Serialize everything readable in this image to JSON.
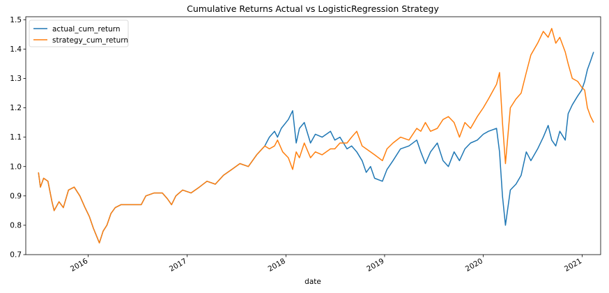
{
  "chart_data": {
    "type": "line",
    "title": "Cumulative Returns Actual vs LogisticRegression Strategy",
    "xlabel": "date",
    "ylabel": "",
    "xlim": [
      "2015-05-15",
      "2021-03-10"
    ],
    "ylim": [
      0.7,
      1.51
    ],
    "grid": false,
    "legend_position": "upper-left",
    "x_ticks": [
      "2016",
      "2017",
      "2018",
      "2019",
      "2020",
      "2021"
    ],
    "y_ticks": [
      "0.7",
      "0.8",
      "0.9",
      "1.0",
      "1.1",
      "1.2",
      "1.3",
      "1.4",
      "1.5"
    ],
    "series": [
      {
        "name": "actual_cum_return",
        "color": "#1f77b4",
        "points": [
          [
            "2015-07-01",
            0.98
          ],
          [
            "2015-07-08",
            0.93
          ],
          [
            "2015-07-20",
            0.96
          ],
          [
            "2015-08-05",
            0.95
          ],
          [
            "2015-08-20",
            0.88
          ],
          [
            "2015-08-28",
            0.85
          ],
          [
            "2015-09-15",
            0.88
          ],
          [
            "2015-10-01",
            0.86
          ],
          [
            "2015-10-20",
            0.92
          ],
          [
            "2015-11-10",
            0.93
          ],
          [
            "2015-12-01",
            0.9
          ],
          [
            "2015-12-20",
            0.86
          ],
          [
            "2016-01-05",
            0.83
          ],
          [
            "2016-01-20",
            0.79
          ],
          [
            "2016-02-11",
            0.74
          ],
          [
            "2016-02-25",
            0.78
          ],
          [
            "2016-03-10",
            0.8
          ],
          [
            "2016-03-25",
            0.84
          ],
          [
            "2016-04-10",
            0.86
          ],
          [
            "2016-05-01",
            0.87
          ],
          [
            "2016-06-01",
            0.87
          ],
          [
            "2016-07-15",
            0.87
          ],
          [
            "2016-08-01",
            0.9
          ],
          [
            "2016-09-01",
            0.91
          ],
          [
            "2016-10-01",
            0.91
          ],
          [
            "2016-10-20",
            0.89
          ],
          [
            "2016-11-04",
            0.87
          ],
          [
            "2016-11-20",
            0.9
          ],
          [
            "2016-12-15",
            0.92
          ],
          [
            "2017-01-15",
            0.91
          ],
          [
            "2017-02-15",
            0.93
          ],
          [
            "2017-03-15",
            0.95
          ],
          [
            "2017-04-15",
            0.94
          ],
          [
            "2017-05-15",
            0.97
          ],
          [
            "2017-06-15",
            0.99
          ],
          [
            "2017-07-15",
            1.01
          ],
          [
            "2017-08-15",
            1.0
          ],
          [
            "2017-09-15",
            1.04
          ],
          [
            "2017-10-15",
            1.07
          ],
          [
            "2017-11-01",
            1.1
          ],
          [
            "2017-11-20",
            1.12
          ],
          [
            "2017-12-01",
            1.1
          ],
          [
            "2017-12-15",
            1.13
          ],
          [
            "2018-01-10",
            1.16
          ],
          [
            "2018-01-26",
            1.19
          ],
          [
            "2018-02-08",
            1.08
          ],
          [
            "2018-02-20",
            1.13
          ],
          [
            "2018-03-10",
            1.15
          ],
          [
            "2018-04-02",
            1.08
          ],
          [
            "2018-04-20",
            1.11
          ],
          [
            "2018-05-15",
            1.1
          ],
          [
            "2018-06-15",
            1.12
          ],
          [
            "2018-07-01",
            1.09
          ],
          [
            "2018-07-20",
            1.1
          ],
          [
            "2018-08-15",
            1.06
          ],
          [
            "2018-09-01",
            1.07
          ],
          [
            "2018-09-20",
            1.05
          ],
          [
            "2018-10-10",
            1.02
          ],
          [
            "2018-10-25",
            0.98
          ],
          [
            "2018-11-10",
            1.0
          ],
          [
            "2018-11-25",
            0.96
          ],
          [
            "2018-12-24",
            0.95
          ],
          [
            "2019-01-10",
            0.99
          ],
          [
            "2019-02-01",
            1.02
          ],
          [
            "2019-03-01",
            1.06
          ],
          [
            "2019-04-01",
            1.07
          ],
          [
            "2019-04-30",
            1.09
          ],
          [
            "2019-05-15",
            1.05
          ],
          [
            "2019-06-01",
            1.01
          ],
          [
            "2019-06-20",
            1.05
          ],
          [
            "2019-07-15",
            1.08
          ],
          [
            "2019-08-05",
            1.02
          ],
          [
            "2019-08-25",
            1.0
          ],
          [
            "2019-09-15",
            1.05
          ],
          [
            "2019-10-05",
            1.02
          ],
          [
            "2019-10-25",
            1.06
          ],
          [
            "2019-11-15",
            1.08
          ],
          [
            "2019-12-10",
            1.09
          ],
          [
            "2020-01-01",
            1.11
          ],
          [
            "2020-01-20",
            1.12
          ],
          [
            "2020-02-19",
            1.13
          ],
          [
            "2020-03-01",
            1.05
          ],
          [
            "2020-03-12",
            0.9
          ],
          [
            "2020-03-23",
            0.8
          ],
          [
            "2020-04-10",
            0.92
          ],
          [
            "2020-05-01",
            0.94
          ],
          [
            "2020-05-20",
            0.97
          ],
          [
            "2020-06-08",
            1.05
          ],
          [
            "2020-06-25",
            1.02
          ],
          [
            "2020-07-20",
            1.06
          ],
          [
            "2020-08-10",
            1.1
          ],
          [
            "2020-08-28",
            1.14
          ],
          [
            "2020-09-10",
            1.09
          ],
          [
            "2020-09-25",
            1.07
          ],
          [
            "2020-10-10",
            1.12
          ],
          [
            "2020-10-30",
            1.09
          ],
          [
            "2020-11-10",
            1.18
          ],
          [
            "2020-11-25",
            1.21
          ],
          [
            "2020-12-15",
            1.24
          ],
          [
            "2020-12-30",
            1.26
          ],
          [
            "2021-01-10",
            1.29
          ],
          [
            "2021-01-20",
            1.33
          ],
          [
            "2021-02-01",
            1.36
          ],
          [
            "2021-02-12",
            1.39
          ]
        ]
      },
      {
        "name": "strategy_cum_return",
        "color": "#ff7f0e",
        "points": [
          [
            "2015-07-01",
            0.98
          ],
          [
            "2015-07-08",
            0.93
          ],
          [
            "2015-07-20",
            0.96
          ],
          [
            "2015-08-05",
            0.95
          ],
          [
            "2015-08-20",
            0.88
          ],
          [
            "2015-08-28",
            0.85
          ],
          [
            "2015-09-15",
            0.88
          ],
          [
            "2015-10-01",
            0.86
          ],
          [
            "2015-10-20",
            0.92
          ],
          [
            "2015-11-10",
            0.93
          ],
          [
            "2015-12-01",
            0.9
          ],
          [
            "2015-12-20",
            0.86
          ],
          [
            "2016-01-05",
            0.83
          ],
          [
            "2016-01-20",
            0.79
          ],
          [
            "2016-02-11",
            0.74
          ],
          [
            "2016-02-25",
            0.78
          ],
          [
            "2016-03-10",
            0.8
          ],
          [
            "2016-03-25",
            0.84
          ],
          [
            "2016-04-10",
            0.86
          ],
          [
            "2016-05-01",
            0.87
          ],
          [
            "2016-06-01",
            0.87
          ],
          [
            "2016-07-15",
            0.87
          ],
          [
            "2016-08-01",
            0.9
          ],
          [
            "2016-09-01",
            0.91
          ],
          [
            "2016-10-01",
            0.91
          ],
          [
            "2016-10-20",
            0.89
          ],
          [
            "2016-11-04",
            0.87
          ],
          [
            "2016-11-20",
            0.9
          ],
          [
            "2016-12-15",
            0.92
          ],
          [
            "2017-01-15",
            0.91
          ],
          [
            "2017-02-15",
            0.93
          ],
          [
            "2017-03-15",
            0.95
          ],
          [
            "2017-04-15",
            0.94
          ],
          [
            "2017-05-15",
            0.97
          ],
          [
            "2017-06-15",
            0.99
          ],
          [
            "2017-07-15",
            1.01
          ],
          [
            "2017-08-15",
            1.0
          ],
          [
            "2017-09-15",
            1.04
          ],
          [
            "2017-10-15",
            1.07
          ],
          [
            "2017-11-01",
            1.06
          ],
          [
            "2017-11-20",
            1.07
          ],
          [
            "2017-12-01",
            1.09
          ],
          [
            "2017-12-20",
            1.05
          ],
          [
            "2018-01-10",
            1.03
          ],
          [
            "2018-01-26",
            0.99
          ],
          [
            "2018-02-08",
            1.05
          ],
          [
            "2018-02-20",
            1.03
          ],
          [
            "2018-03-10",
            1.08
          ],
          [
            "2018-04-02",
            1.03
          ],
          [
            "2018-04-20",
            1.05
          ],
          [
            "2018-05-15",
            1.04
          ],
          [
            "2018-06-15",
            1.06
          ],
          [
            "2018-07-01",
            1.06
          ],
          [
            "2018-07-20",
            1.08
          ],
          [
            "2018-08-15",
            1.08
          ],
          [
            "2018-09-01",
            1.1
          ],
          [
            "2018-09-20",
            1.12
          ],
          [
            "2018-10-10",
            1.07
          ],
          [
            "2018-10-25",
            1.06
          ],
          [
            "2018-11-10",
            1.05
          ],
          [
            "2018-11-25",
            1.04
          ],
          [
            "2018-12-24",
            1.02
          ],
          [
            "2019-01-10",
            1.06
          ],
          [
            "2019-02-01",
            1.08
          ],
          [
            "2019-03-01",
            1.1
          ],
          [
            "2019-04-01",
            1.09
          ],
          [
            "2019-04-30",
            1.13
          ],
          [
            "2019-05-15",
            1.12
          ],
          [
            "2019-06-01",
            1.15
          ],
          [
            "2019-06-20",
            1.12
          ],
          [
            "2019-07-15",
            1.13
          ],
          [
            "2019-08-05",
            1.16
          ],
          [
            "2019-08-25",
            1.17
          ],
          [
            "2019-09-15",
            1.15
          ],
          [
            "2019-10-05",
            1.1
          ],
          [
            "2019-10-25",
            1.15
          ],
          [
            "2019-11-15",
            1.13
          ],
          [
            "2019-12-10",
            1.17
          ],
          [
            "2020-01-01",
            1.2
          ],
          [
            "2020-01-20",
            1.23
          ],
          [
            "2020-02-19",
            1.28
          ],
          [
            "2020-03-01",
            1.32
          ],
          [
            "2020-03-12",
            1.15
          ],
          [
            "2020-03-23",
            1.01
          ],
          [
            "2020-04-10",
            1.2
          ],
          [
            "2020-05-01",
            1.23
          ],
          [
            "2020-05-20",
            1.25
          ],
          [
            "2020-06-08",
            1.32
          ],
          [
            "2020-06-25",
            1.38
          ],
          [
            "2020-07-20",
            1.42
          ],
          [
            "2020-08-10",
            1.46
          ],
          [
            "2020-08-28",
            1.44
          ],
          [
            "2020-09-10",
            1.47
          ],
          [
            "2020-09-25",
            1.42
          ],
          [
            "2020-10-10",
            1.44
          ],
          [
            "2020-10-30",
            1.39
          ],
          [
            "2020-11-10",
            1.35
          ],
          [
            "2020-11-25",
            1.3
          ],
          [
            "2020-12-15",
            1.29
          ],
          [
            "2020-12-30",
            1.27
          ],
          [
            "2021-01-10",
            1.26
          ],
          [
            "2021-01-20",
            1.2
          ],
          [
            "2021-02-01",
            1.17
          ],
          [
            "2021-02-12",
            1.15
          ]
        ]
      }
    ]
  }
}
